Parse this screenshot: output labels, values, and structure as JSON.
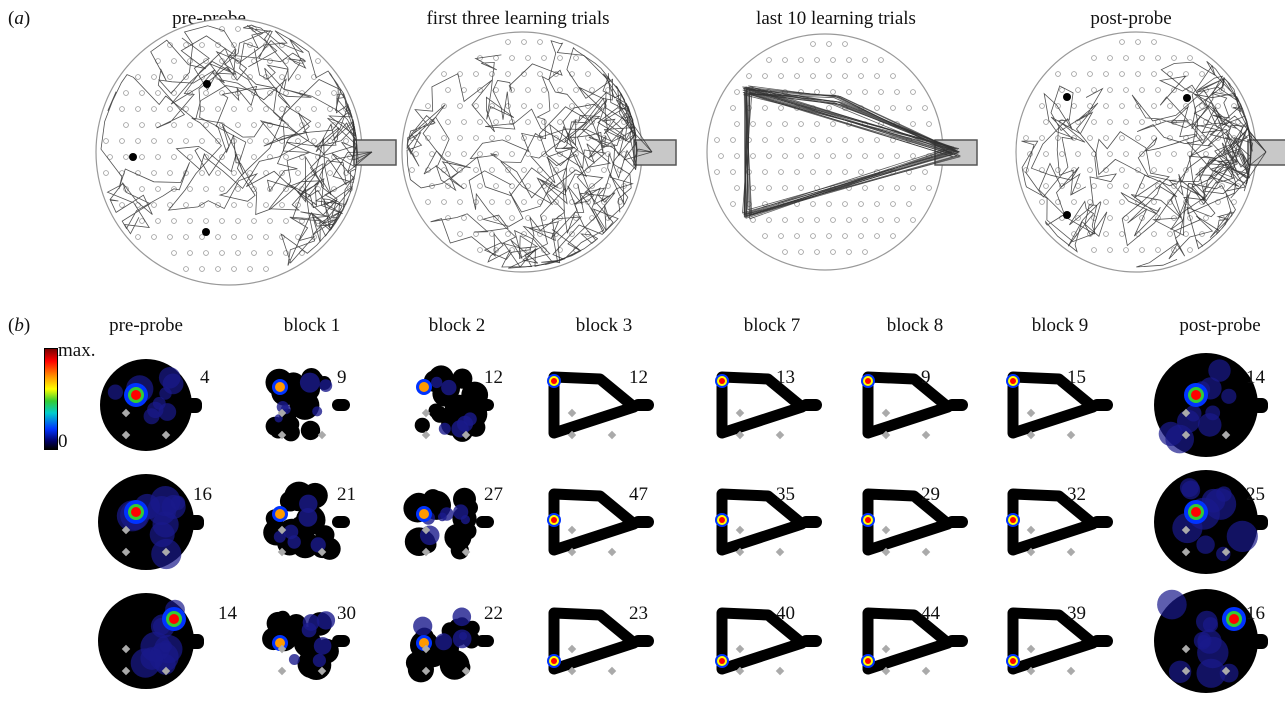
{
  "panel_a": {
    "label_open": "(",
    "label_letter": "a",
    "label_close": ")",
    "titles": [
      "pre-probe",
      "first three learning trials",
      "last 10 learning trials",
      "post-probe"
    ]
  },
  "panel_b": {
    "label_open": "(",
    "label_letter": "b",
    "label_close": ")",
    "columns": [
      "pre-probe",
      "block 1",
      "block 2",
      "block 3",
      "block 7",
      "block 8",
      "block 9",
      "post-probe"
    ],
    "colorbar": {
      "max_label": "max.",
      "min_label": "0"
    },
    "counts": [
      [
        "4",
        "9",
        "12",
        "12",
        "13",
        "9",
        "15",
        "14"
      ],
      [
        "16",
        "21",
        "27",
        "47",
        "35",
        "29",
        "32",
        "25"
      ],
      [
        "14",
        "30",
        "22",
        "23",
        "40",
        "44",
        "39",
        "16"
      ]
    ]
  }
}
